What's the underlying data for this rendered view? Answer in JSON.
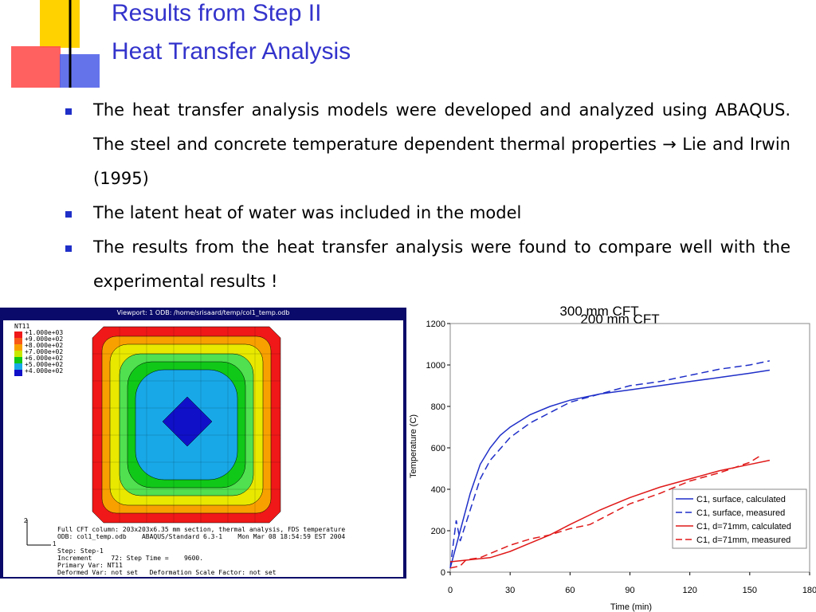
{
  "slide": {
    "title": [
      "Results from Step II",
      "Heat Transfer Analysis"
    ],
    "bullets": [
      "The heat transfer analysis models were developed and analyzed using ABAQUS. The steel and concrete temperature dependent thermal properties → Lie and Irwin (1995)",
      "The latent heat of water was included in the model",
      "The results from the heat transfer analysis were found to compare well with the experimental results !"
    ],
    "viewport": {
      "header": "Viewport: 1      ODB: /home/srisaard/temp/col1_temp.odb",
      "legend_title": "NT11",
      "legend": [
        "+1.000e+03",
        "+9.000e+02",
        "+8.000e+02",
        "+7.000e+02",
        "+6.000e+02",
        "+5.000e+02",
        "+4.000e+02"
      ],
      "triad": [
        "2",
        "1"
      ],
      "info": [
        "Full CFT column: 203x203x6.35 mm section, thermal analysis, FDS temperature",
        "ODB: col1_temp.odb    ABAQUS/Standard 6.3-1    Mon Mar 08 18:54:59 EST 2004",
        "",
        "Step: Step-1",
        "Increment     72: Step Time =    9600.",
        "Primary Var: NT11",
        "Deformed Var: not set   Deformation Scale Factor: not set"
      ]
    }
  },
  "chart_data": {
    "type": "line",
    "title": "300 mm CFT",
    "subtitle": "200 mm CFT",
    "x_label": "Time (min)",
    "y_label": "Temperature (C)",
    "xlim": [
      0,
      180
    ],
    "xticks": [
      0,
      30,
      60,
      90,
      120,
      150,
      180
    ],
    "ylim": [
      0,
      1200
    ],
    "yticks": [
      0,
      200,
      400,
      600,
      800,
      1000,
      1200
    ],
    "legend": "lower right",
    "series": [
      {
        "name": "C1, surface, calculated",
        "color": "#1f2fc8",
        "dashed": false,
        "x": [
          0,
          5,
          10,
          15,
          20,
          25,
          30,
          40,
          50,
          60,
          75,
          90,
          105,
          120,
          135,
          150,
          160
        ],
        "values": [
          20,
          200,
          380,
          520,
          600,
          660,
          700,
          760,
          800,
          830,
          860,
          880,
          900,
          920,
          940,
          960,
          975
        ]
      },
      {
        "name": "C1, surface, measured",
        "color": "#1f2fc8",
        "dashed": true,
        "x": [
          0,
          3,
          5,
          10,
          15,
          20,
          30,
          40,
          50,
          60,
          75,
          90,
          105,
          120,
          135,
          150,
          160
        ],
        "values": [
          20,
          250,
          150,
          300,
          450,
          540,
          650,
          720,
          770,
          820,
          860,
          900,
          920,
          950,
          980,
          1000,
          1020
        ]
      },
      {
        "name": "C1, d=71mm, calculated",
        "color": "#e01818",
        "dashed": false,
        "x": [
          0,
          10,
          20,
          30,
          40,
          50,
          60,
          75,
          90,
          105,
          120,
          135,
          150,
          160
        ],
        "values": [
          50,
          60,
          70,
          100,
          140,
          180,
          230,
          300,
          360,
          410,
          450,
          490,
          520,
          540
        ]
      },
      {
        "name": "C1, d=71mm, measured",
        "color": "#e01818",
        "dashed": true,
        "x": [
          0,
          5,
          8,
          15,
          20,
          30,
          40,
          50,
          60,
          70,
          80,
          90,
          105,
          120,
          135,
          150,
          155
        ],
        "values": [
          20,
          30,
          60,
          70,
          90,
          130,
          160,
          180,
          210,
          230,
          280,
          330,
          380,
          440,
          480,
          530,
          560
        ]
      }
    ]
  }
}
